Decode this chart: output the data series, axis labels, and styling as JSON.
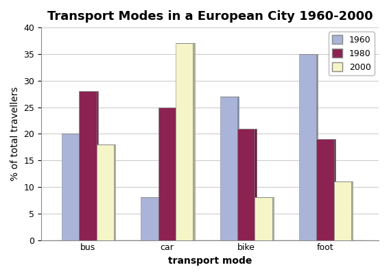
{
  "title": "Transport Modes in a European City 1960-2000",
  "xlabel": "transport mode",
  "ylabel": "% of total travellers",
  "categories": [
    "bus",
    "car",
    "bike",
    "foot"
  ],
  "years": [
    "1960",
    "1980",
    "2000"
  ],
  "values": {
    "1960": [
      20,
      8,
      27,
      35
    ],
    "1980": [
      28,
      25,
      21,
      19
    ],
    "2000": [
      18,
      37,
      8,
      11
    ]
  },
  "bar_colors": {
    "1960": "#aab4d8",
    "1980": "#8b2252",
    "2000": "#f5f5c8"
  },
  "bar_shadow_colors": {
    "1960": "#7a8aaa",
    "1980": "#5a1535",
    "2000": "#b0b090"
  },
  "ylim": [
    0,
    40
  ],
  "yticks": [
    0,
    5,
    10,
    15,
    20,
    25,
    30,
    35,
    40
  ],
  "background_color": "#ffffff",
  "plot_bg_color": "#ffffff",
  "floor_color": "#aaaaaa",
  "grid_color": "#cccccc",
  "bar_width": 0.22,
  "depth": 0.06,
  "title_fontsize": 13,
  "axis_label_fontsize": 10,
  "tick_fontsize": 9,
  "legend_fontsize": 9
}
